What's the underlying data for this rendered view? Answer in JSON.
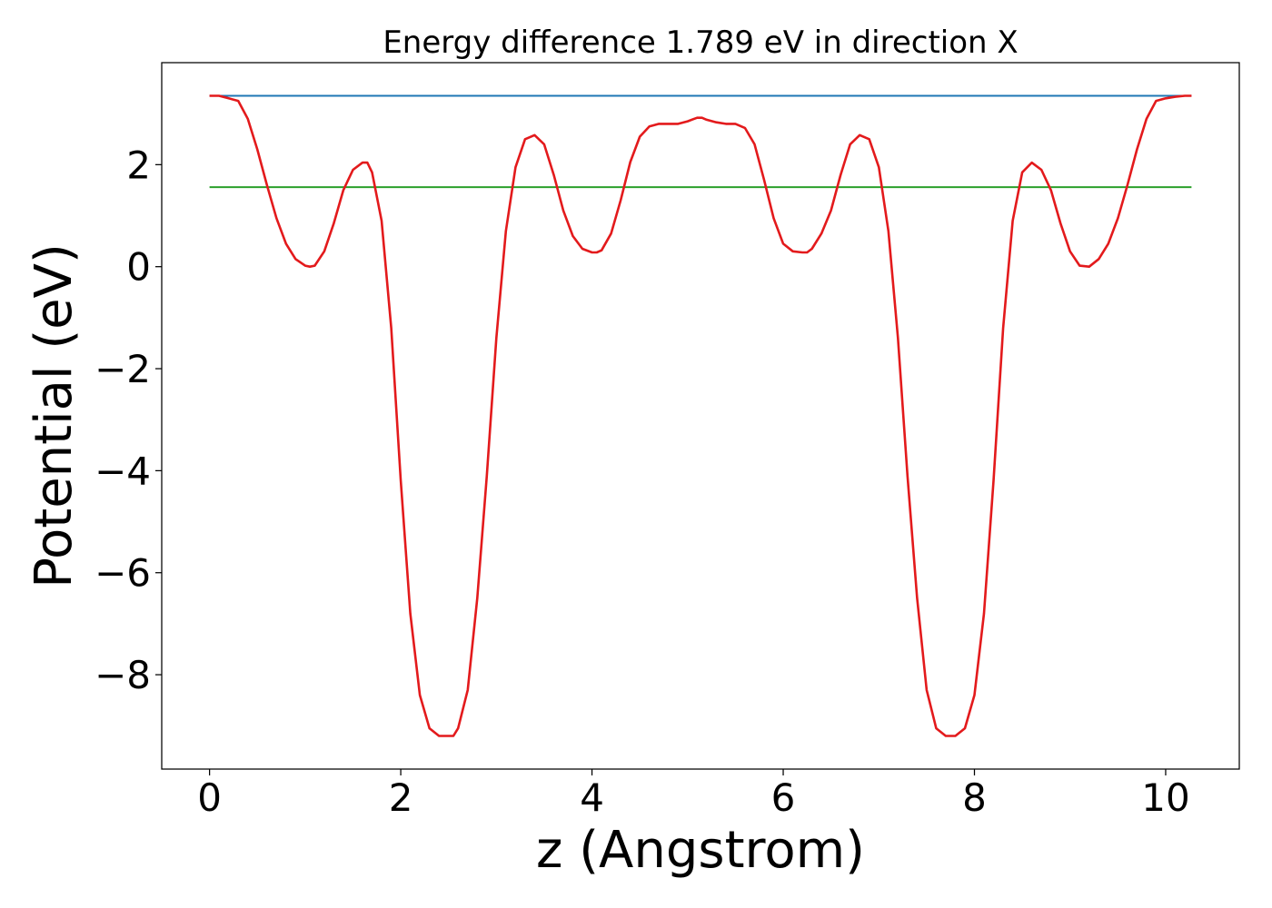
{
  "chart_data": {
    "type": "line",
    "title": "Energy difference 1.789 eV in direction X",
    "xlabel": "z (Angstrom)",
    "ylabel": "Potential (eV)",
    "xlim": [
      -0.5,
      10.77
    ],
    "ylim": [
      -9.85,
      4.0
    ],
    "grid": false,
    "x_ticks": [
      0,
      2,
      4,
      6,
      8,
      10
    ],
    "x_tick_labels": [
      "0",
      "2",
      "4",
      "6",
      "8",
      "10"
    ],
    "y_ticks": [
      -8,
      -6,
      -4,
      -2,
      0,
      2
    ],
    "y_tick_labels": [
      "−8",
      "−6",
      "−4",
      "−2",
      "0",
      "2"
    ],
    "series": [
      {
        "color": "#1f77b4",
        "x": [
          0,
          10.27
        ],
        "y": [
          3.35,
          3.35
        ]
      },
      {
        "color": "#2ca02c",
        "x": [
          0,
          10.27
        ],
        "y": [
          1.56,
          1.56
        ]
      },
      {
        "color": "#e31a1c",
        "x": [
          0,
          0.1,
          0.2,
          0.3,
          0.4,
          0.5,
          0.6,
          0.7,
          0.8,
          0.9,
          1.0,
          1.05,
          1.1,
          1.2,
          1.3,
          1.4,
          1.5,
          1.6,
          1.65,
          1.7,
          1.8,
          1.9,
          2.0,
          2.1,
          2.2,
          2.3,
          2.4,
          2.5,
          2.55,
          2.6,
          2.7,
          2.8,
          2.9,
          3.0,
          3.1,
          3.2,
          3.3,
          3.4,
          3.5,
          3.6,
          3.7,
          3.8,
          3.9,
          4.0,
          4.05,
          4.1,
          4.2,
          4.3,
          4.4,
          4.5,
          4.6,
          4.7,
          4.8,
          4.9,
          5.0,
          5.1,
          5.15,
          5.2,
          5.3,
          5.4,
          5.5,
          5.6,
          5.7,
          5.8,
          5.9,
          6.0,
          6.1,
          6.2,
          6.25,
          6.3,
          6.4,
          6.5,
          6.6,
          6.7,
          6.8,
          6.9,
          7.0,
          7.1,
          7.2,
          7.3,
          7.4,
          7.5,
          7.6,
          7.7,
          7.75,
          7.8,
          7.9,
          8.0,
          8.1,
          8.2,
          8.3,
          8.4,
          8.5,
          8.6,
          8.7,
          8.8,
          8.9,
          9.0,
          9.1,
          9.2,
          9.3,
          9.4,
          9.5,
          9.6,
          9.7,
          9.8,
          9.9,
          10.0,
          10.1,
          10.2,
          10.27
        ],
        "y": [
          3.35,
          3.35,
          3.3,
          3.25,
          2.9,
          2.3,
          1.6,
          0.95,
          0.45,
          0.15,
          0.02,
          0.0,
          0.02,
          0.3,
          0.85,
          1.5,
          1.9,
          2.04,
          2.04,
          1.85,
          0.9,
          -1.2,
          -4.2,
          -6.8,
          -8.4,
          -9.05,
          -9.2,
          -9.2,
          -9.2,
          -9.05,
          -8.3,
          -6.5,
          -4.1,
          -1.4,
          0.7,
          1.95,
          2.5,
          2.58,
          2.4,
          1.8,
          1.1,
          0.6,
          0.35,
          0.28,
          0.28,
          0.32,
          0.65,
          1.3,
          2.05,
          2.55,
          2.75,
          2.8,
          2.8,
          2.8,
          2.85,
          2.92,
          2.92,
          2.88,
          2.83,
          2.8,
          2.8,
          2.72,
          2.4,
          1.7,
          0.95,
          0.45,
          0.3,
          0.28,
          0.28,
          0.35,
          0.65,
          1.1,
          1.8,
          2.4,
          2.58,
          2.5,
          1.95,
          0.7,
          -1.4,
          -4.1,
          -6.5,
          -8.3,
          -9.05,
          -9.2,
          -9.2,
          -9.2,
          -9.05,
          -8.4,
          -6.8,
          -4.2,
          -1.2,
          0.9,
          1.85,
          2.04,
          1.9,
          1.5,
          0.85,
          0.3,
          0.02,
          0.0,
          0.15,
          0.45,
          0.95,
          1.6,
          2.3,
          2.9,
          3.25,
          3.3,
          3.33,
          3.35,
          3.35
        ]
      }
    ]
  }
}
